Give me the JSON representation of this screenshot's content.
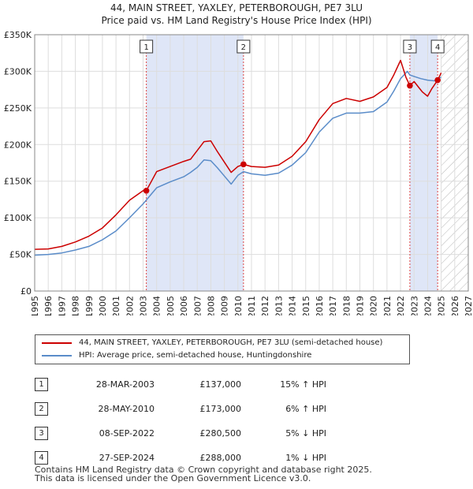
{
  "chart_data": {
    "type": "line",
    "title": "44, MAIN STREET, YAXLEY, PETERBOROUGH, PE7 3LU",
    "subtitle": "Price paid vs. HM Land Registry's House Price Index (HPI)",
    "ylim": [
      0,
      350000
    ],
    "xlim": [
      1995,
      2027
    ],
    "y_ticks": [
      0,
      50000,
      100000,
      150000,
      200000,
      250000,
      300000,
      350000
    ],
    "y_tick_labels": [
      "£0",
      "£50K",
      "£100K",
      "£150K",
      "£200K",
      "£250K",
      "£300K",
      "£350K"
    ],
    "x_ticks": [
      1995,
      1996,
      1997,
      1998,
      1999,
      2000,
      2001,
      2002,
      2003,
      2004,
      2005,
      2006,
      2007,
      2008,
      2009,
      2010,
      2011,
      2012,
      2013,
      2014,
      2015,
      2016,
      2017,
      2018,
      2019,
      2020,
      2021,
      2022,
      2023,
      2024,
      2025,
      2026,
      2027
    ],
    "hatched_from": 2025.0,
    "shaded_periods": [
      [
        2003.24,
        2010.41
      ],
      [
        2022.69,
        2024.74
      ]
    ],
    "series": [
      {
        "name": "44, MAIN STREET, YAXLEY, PETERBOROUGH, PE7 3LU (semi-detached house)",
        "color": "#cc0000",
        "x": [
          1995.0,
          1996.0,
          1997.0,
          1998.0,
          1999.0,
          2000.0,
          2001.0,
          2002.0,
          2003.0,
          2003.24,
          2004.0,
          2005.0,
          2006.0,
          2006.5,
          2007.0,
          2007.5,
          2008.0,
          2008.5,
          2009.0,
          2009.5,
          2010.0,
          2010.41,
          2011.0,
          2012.0,
          2013.0,
          2014.0,
          2015.0,
          2016.0,
          2017.0,
          2018.0,
          2019.0,
          2020.0,
          2021.0,
          2021.5,
          2022.0,
          2022.4,
          2022.69,
          2023.0,
          2023.3,
          2023.6,
          2024.0,
          2024.3,
          2024.74,
          2025.0
        ],
        "values": [
          57000,
          57500,
          61000,
          67000,
          75000,
          86000,
          104000,
          124000,
          137000,
          137000,
          163000,
          170000,
          177000,
          180000,
          192000,
          204000,
          205000,
          190000,
          176000,
          162000,
          170000,
          173000,
          170000,
          169000,
          172000,
          184000,
          204000,
          234000,
          256000,
          263000,
          259000,
          265000,
          278000,
          295000,
          315000,
          292000,
          280500,
          286000,
          279000,
          272000,
          266000,
          276000,
          288000,
          298000
        ]
      },
      {
        "name": "HPI: Average price, semi-detached house, Huntingdonshire",
        "color": "#5a8cc9",
        "x": [
          1995.0,
          1996.0,
          1997.0,
          1998.0,
          1999.0,
          2000.0,
          2001.0,
          2002.0,
          2003.0,
          2004.0,
          2005.0,
          2006.0,
          2006.5,
          2007.0,
          2007.5,
          2008.0,
          2008.5,
          2009.0,
          2009.5,
          2010.0,
          2010.41,
          2011.0,
          2012.0,
          2013.0,
          2014.0,
          2015.0,
          2016.0,
          2017.0,
          2018.0,
          2019.0,
          2020.0,
          2021.0,
          2021.5,
          2022.0,
          2022.5,
          2022.69,
          2023.0,
          2023.5,
          2024.0,
          2024.5,
          2024.74,
          2025.0
        ],
        "values": [
          49000,
          50000,
          52000,
          56000,
          61000,
          70000,
          82000,
          100000,
          119000,
          141000,
          149000,
          156000,
          162000,
          169000,
          179000,
          178000,
          168000,
          157000,
          146000,
          158000,
          163000,
          160000,
          158000,
          161000,
          172000,
          189000,
          217000,
          236000,
          243000,
          243000,
          245000,
          258000,
          273000,
          290000,
          300000,
          295000,
          293000,
          290000,
          288000,
          287000,
          290000,
          292000
        ]
      }
    ],
    "sales": [
      {
        "num": "1",
        "x": 2003.24,
        "price": 137000
      },
      {
        "num": "2",
        "x": 2010.41,
        "price": 173000
      },
      {
        "num": "3",
        "x": 2022.69,
        "price": 280500
      },
      {
        "num": "4",
        "x": 2024.74,
        "price": 288000
      }
    ]
  },
  "legend": {
    "property_label": "44, MAIN STREET, YAXLEY, PETERBOROUGH, PE7 3LU (semi-detached house)",
    "hpi_label": "HPI: Average price, semi-detached house, Huntingdonshire"
  },
  "table": {
    "rows": [
      {
        "num": "1",
        "date": "28-MAR-2003",
        "price": "£137,000",
        "hpi": "15% ↑ HPI"
      },
      {
        "num": "2",
        "date": "28-MAY-2010",
        "price": "£173,000",
        "hpi": "6% ↑ HPI"
      },
      {
        "num": "3",
        "date": "08-SEP-2022",
        "price": "£280,500",
        "hpi": "5% ↓ HPI"
      },
      {
        "num": "4",
        "date": "27-SEP-2024",
        "price": "£288,000",
        "hpi": "1% ↓ HPI"
      }
    ]
  },
  "footer": {
    "line1": "Contains HM Land Registry data © Crown copyright and database right 2025.",
    "line2": "This data is licensed under the Open Government Licence v3.0."
  },
  "colors": {
    "property": "#cc0000",
    "hpi": "#5a8cc9",
    "shade": "#dfe6f7",
    "grid": "#dddddd"
  }
}
